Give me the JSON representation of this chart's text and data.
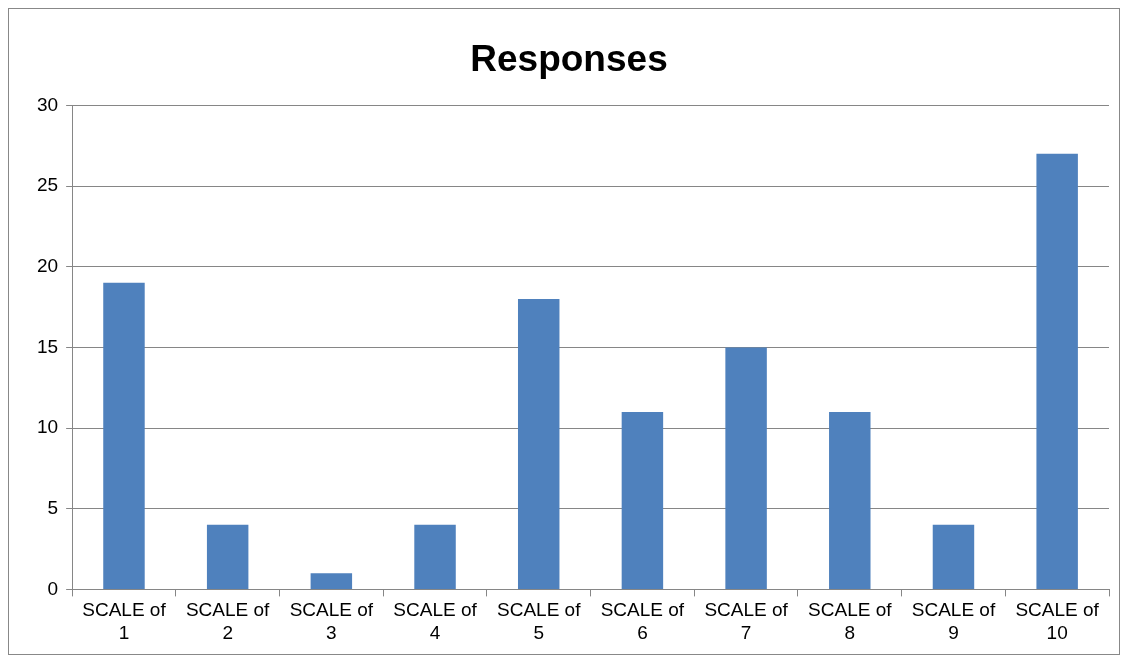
{
  "chart_data": {
    "type": "bar",
    "title": "Responses",
    "categories": [
      "SCALE of 1",
      "SCALE of 2",
      "SCALE of 3",
      "SCALE of 4",
      "SCALE of 5",
      "SCALE of 6",
      "SCALE of 7",
      "SCALE of 8",
      "SCALE of 9",
      "SCALE of 10"
    ],
    "values": [
      19,
      4,
      1,
      4,
      18,
      11,
      15,
      11,
      4,
      27
    ],
    "color": "#4f81bd",
    "ylim": [
      0,
      30
    ],
    "yticks": [
      0,
      5,
      10,
      15,
      20,
      25,
      30
    ],
    "grid": "y",
    "legend": false
  }
}
